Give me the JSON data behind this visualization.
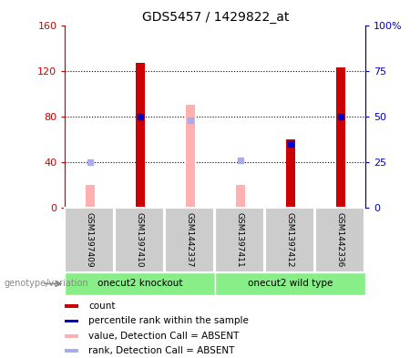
{
  "title": "GDS5457 / 1429822_at",
  "samples": [
    "GSM1397409",
    "GSM1397410",
    "GSM1442337",
    "GSM1397411",
    "GSM1397412",
    "GSM1442336"
  ],
  "group_labels": [
    "onecut2 knockout",
    "onecut2 wild type"
  ],
  "count_values": [
    null,
    127,
    null,
    null,
    60,
    123
  ],
  "count_absent": [
    20,
    null,
    90,
    20,
    null,
    null
  ],
  "rank_values": [
    null,
    50,
    null,
    null,
    35,
    50
  ],
  "rank_absent": [
    25,
    null,
    48,
    26,
    null,
    null
  ],
  "left_ylim": [
    0,
    160
  ],
  "right_ylim": [
    0,
    100
  ],
  "left_yticks": [
    0,
    40,
    80,
    120,
    160
  ],
  "right_yticks": [
    0,
    25,
    50,
    75,
    100
  ],
  "left_yticklabels": [
    "0",
    "40",
    "80",
    "120",
    "160"
  ],
  "right_yticklabels": [
    "0",
    "25",
    "50",
    "75",
    "100%"
  ],
  "color_count": "#cc0000",
  "color_rank": "#0000cc",
  "color_count_absent": "#ffb0b0",
  "color_rank_absent": "#aaaaee",
  "color_bg_label": "#cccccc",
  "color_group_green": "#88ee88",
  "legend_items": [
    {
      "label": "count",
      "color": "#cc0000"
    },
    {
      "label": "percentile rank within the sample",
      "color": "#0000cc"
    },
    {
      "label": "value, Detection Call = ABSENT",
      "color": "#ffb0b0"
    },
    {
      "label": "rank, Detection Call = ABSENT",
      "color": "#aaaaee"
    }
  ]
}
